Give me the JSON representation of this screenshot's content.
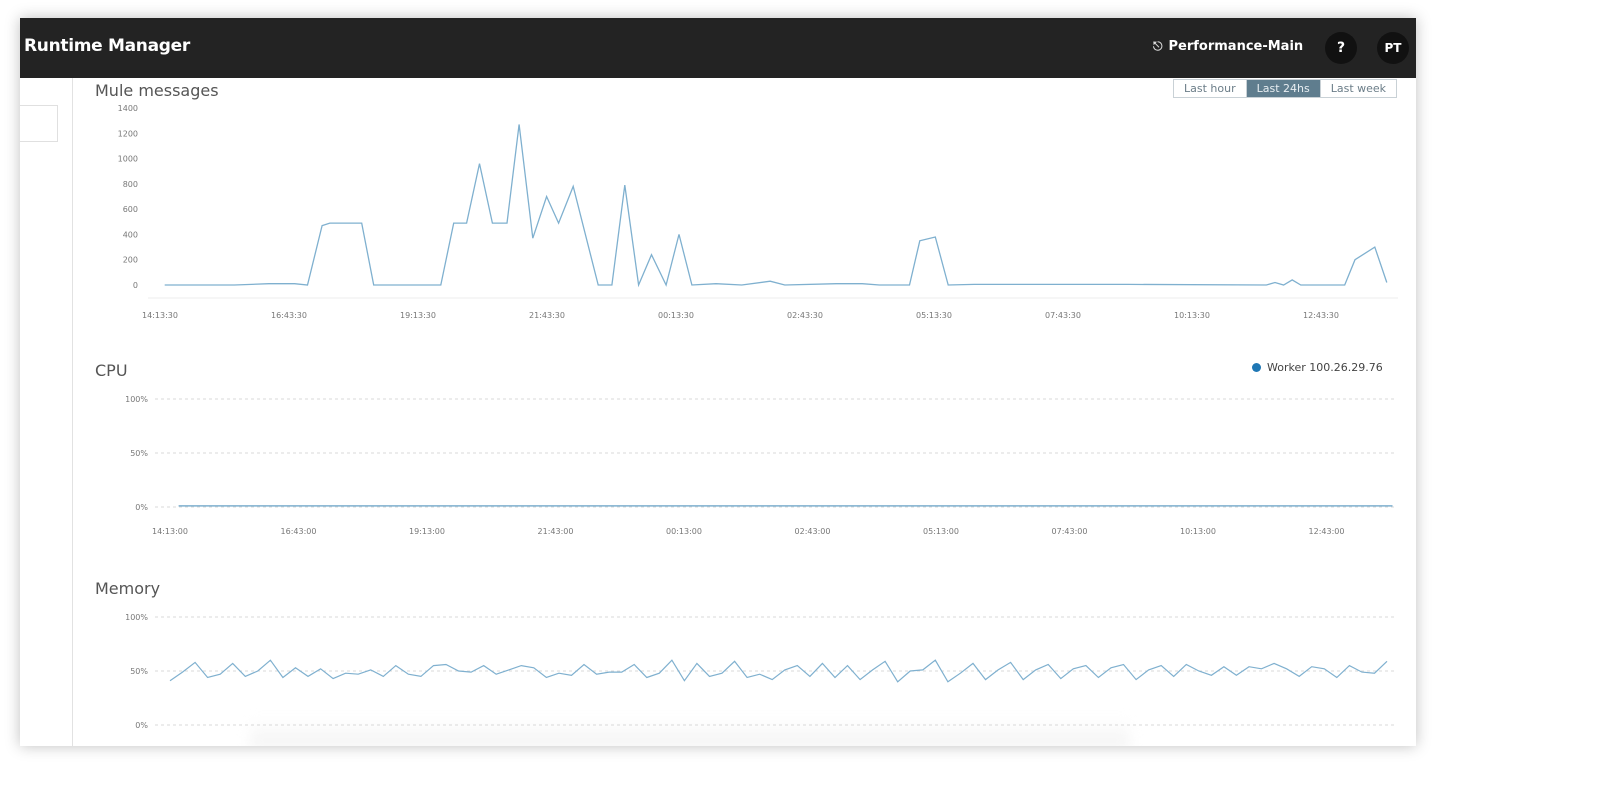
{
  "header": {
    "app_title": "Runtime Manager",
    "environment": "Performance-Main",
    "environment_icon": "environment-icon",
    "help_label": "?",
    "avatar_initials": "PT"
  },
  "time_range": {
    "options": [
      "Last hour",
      "Last 24hs",
      "Last week"
    ],
    "selected": "Last 24hs",
    "active_color": "#5f7d8e"
  },
  "sections": {
    "mule_title": "Mule messages",
    "cpu_title": "CPU",
    "memory_title": "Memory"
  },
  "legend": {
    "label": "Worker 100.26.29.76",
    "color": "#1f77b4"
  },
  "chart_data": [
    {
      "type": "line",
      "title": "Mule messages",
      "line_color": "#7fb0cf",
      "ylim": [
        0,
        1400
      ],
      "yticks": [
        "0",
        "200",
        "400",
        "600",
        "800",
        "1000",
        "1200",
        "1400"
      ],
      "xticks": [
        "14:13:30",
        "16:43:30",
        "19:13:30",
        "21:43:30",
        "00:13:30",
        "02:43:30",
        "05:13:30",
        "07:43:30",
        "10:13:30",
        "12:43:30"
      ],
      "grid": false,
      "points": [
        [
          "14:19",
          0
        ],
        [
          "15:40",
          0
        ],
        [
          "16:20",
          10
        ],
        [
          "16:50",
          10
        ],
        [
          "17:05",
          0
        ],
        [
          "17:22",
          470
        ],
        [
          "17:31",
          490
        ],
        [
          "18:08",
          490
        ],
        [
          "18:22",
          0
        ],
        [
          "19:40",
          0
        ],
        [
          "19:55",
          490
        ],
        [
          "20:10",
          490
        ],
        [
          "20:25",
          960
        ],
        [
          "20:40",
          490
        ],
        [
          "20:57",
          490
        ],
        [
          "21:11",
          1270
        ],
        [
          "21:27",
          370
        ],
        [
          "21:43",
          700
        ],
        [
          "21:57",
          490
        ],
        [
          "22:14",
          780
        ],
        [
          "22:43",
          0
        ],
        [
          "22:59",
          0
        ],
        [
          "23:14",
          790
        ],
        [
          "23:30",
          0
        ],
        [
          "23:45",
          240
        ],
        [
          "00:02",
          0
        ],
        [
          "00:17",
          400
        ],
        [
          "00:32",
          0
        ],
        [
          "01:00",
          10
        ],
        [
          "01:30",
          0
        ],
        [
          "02:03",
          30
        ],
        [
          "02:20",
          0
        ],
        [
          "03:20",
          10
        ],
        [
          "03:50",
          10
        ],
        [
          "04:10",
          0
        ],
        [
          "04:45",
          0
        ],
        [
          "04:57",
          350
        ],
        [
          "05:15",
          380
        ],
        [
          "05:30",
          0
        ],
        [
          "06:00",
          5
        ],
        [
          "09:00",
          5
        ],
        [
          "11:40",
          0
        ],
        [
          "11:50",
          20
        ],
        [
          "12:00",
          0
        ],
        [
          "12:10",
          40
        ],
        [
          "12:20",
          0
        ],
        [
          "13:11",
          0
        ],
        [
          "13:23",
          200
        ],
        [
          "13:46",
          300
        ],
        [
          "14:00",
          20
        ]
      ]
    },
    {
      "type": "line",
      "title": "CPU",
      "series": [
        {
          "name": "Worker 100.26.29.76",
          "color": "#7fb0cf",
          "points": [
            [
              "14:23:00",
              1
            ],
            [
              "18:00:00",
              1
            ],
            [
              "22:00:00",
              1
            ],
            [
              "02:00:00",
              1
            ],
            [
              "06:00:00",
              1
            ],
            [
              "10:00:00",
              1
            ],
            [
              "14:00:00",
              1
            ]
          ]
        }
      ],
      "ylim": [
        0,
        100
      ],
      "yticks": [
        "0%",
        "50%",
        "100%"
      ],
      "xticks": [
        "14:13:00",
        "16:43:00",
        "19:13:00",
        "21:43:00",
        "00:13:00",
        "02:43:00",
        "05:13:00",
        "07:43:00",
        "10:13:00",
        "12:43:00"
      ],
      "grid": true
    },
    {
      "type": "line",
      "title": "Memory",
      "line_color": "#7fb0cf",
      "ylim": [
        0,
        100
      ],
      "yticks": [
        "0%",
        "50%",
        "100%"
      ],
      "grid": true,
      "values": [
        41,
        49,
        58,
        44,
        47,
        57,
        45,
        50,
        60,
        44,
        53,
        45,
        52,
        43,
        48,
        47,
        51,
        45,
        55,
        47,
        45,
        55,
        56,
        50,
        49,
        55,
        47,
        51,
        55,
        53,
        44,
        48,
        46,
        56,
        47,
        49,
        49,
        56,
        44,
        48,
        60,
        41,
        57,
        45,
        48,
        59,
        44,
        47,
        42,
        51,
        55,
        45,
        57,
        44,
        55,
        42,
        51,
        59,
        40,
        50,
        51,
        60,
        40,
        48,
        57,
        42,
        51,
        58,
        42,
        51,
        56,
        43,
        52,
        55,
        44,
        53,
        56,
        42,
        51,
        55,
        45,
        56,
        50,
        46,
        54,
        46,
        54,
        52,
        57,
        52,
        45,
        54,
        52,
        44,
        55,
        49,
        48,
        59
      ]
    }
  ]
}
